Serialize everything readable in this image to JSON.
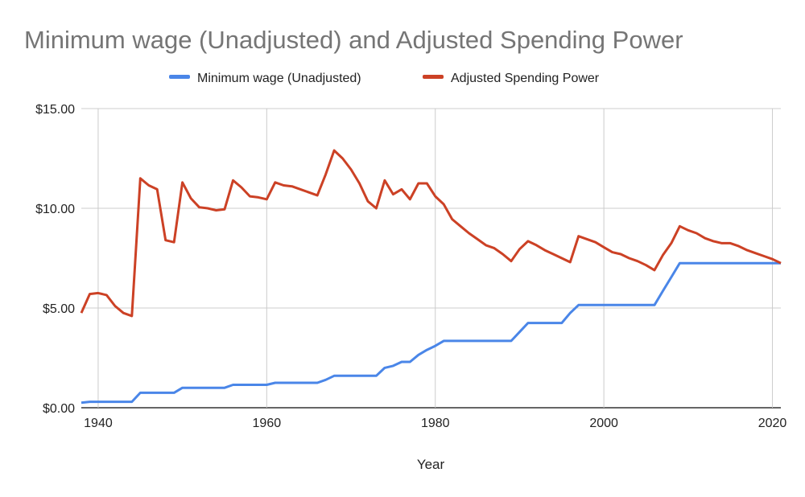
{
  "chart_data": {
    "type": "line",
    "title": "Minimum wage (Unadjusted) and Adjusted Spending Power",
    "xlabel": "Year",
    "ylabel": "",
    "xlim": [
      1938,
      2021
    ],
    "ylim": [
      0,
      15
    ],
    "x_ticks": [
      1940,
      1960,
      1980,
      2000,
      2020
    ],
    "y_ticks": [
      0,
      5,
      10,
      15
    ],
    "y_tick_labels": [
      "$0.00",
      "$5.00",
      "$10.00",
      "$15.00"
    ],
    "grid": true,
    "legend_position": "top",
    "x": [
      1938,
      1939,
      1940,
      1941,
      1942,
      1943,
      1944,
      1945,
      1946,
      1947,
      1948,
      1949,
      1950,
      1951,
      1952,
      1953,
      1954,
      1955,
      1956,
      1957,
      1958,
      1959,
      1960,
      1961,
      1962,
      1963,
      1964,
      1965,
      1966,
      1967,
      1968,
      1969,
      1970,
      1971,
      1972,
      1973,
      1974,
      1975,
      1976,
      1977,
      1978,
      1979,
      1980,
      1981,
      1982,
      1983,
      1984,
      1985,
      1986,
      1987,
      1988,
      1989,
      1990,
      1991,
      1992,
      1993,
      1994,
      1995,
      1996,
      1997,
      1998,
      1999,
      2000,
      2001,
      2002,
      2003,
      2004,
      2005,
      2006,
      2007,
      2008,
      2009,
      2010,
      2011,
      2012,
      2013,
      2014,
      2015,
      2016,
      2017,
      2018,
      2019,
      2020,
      2021
    ],
    "series": [
      {
        "name": "Minimum wage (Unadjusted)",
        "color": "#4a86e8",
        "values": [
          0.25,
          0.3,
          0.3,
          0.3,
          0.3,
          0.3,
          0.3,
          0.75,
          0.75,
          0.75,
          0.75,
          0.75,
          1.0,
          1.0,
          1.0,
          1.0,
          1.0,
          1.0,
          1.15,
          1.15,
          1.15,
          1.15,
          1.15,
          1.25,
          1.25,
          1.25,
          1.25,
          1.25,
          1.25,
          1.4,
          1.6,
          1.6,
          1.6,
          1.6,
          1.6,
          1.6,
          2.0,
          2.1,
          2.3,
          2.3,
          2.65,
          2.9,
          3.1,
          3.35,
          3.35,
          3.35,
          3.35,
          3.35,
          3.35,
          3.35,
          3.35,
          3.35,
          3.8,
          4.25,
          4.25,
          4.25,
          4.25,
          4.25,
          4.75,
          5.15,
          5.15,
          5.15,
          5.15,
          5.15,
          5.15,
          5.15,
          5.15,
          5.15,
          5.15,
          5.85,
          6.55,
          7.25,
          7.25,
          7.25,
          7.25,
          7.25,
          7.25,
          7.25,
          7.25,
          7.25,
          7.25,
          7.25,
          7.25,
          7.25
        ]
      },
      {
        "name": "Adjusted Spending Power",
        "color": "#cc4125",
        "values": [
          4.75,
          5.7,
          5.75,
          5.65,
          5.1,
          4.75,
          4.6,
          11.5,
          11.15,
          10.95,
          8.4,
          8.3,
          11.3,
          10.5,
          10.05,
          10.0,
          9.9,
          9.95,
          11.4,
          11.05,
          10.6,
          10.55,
          10.45,
          11.3,
          11.15,
          11.1,
          10.95,
          10.8,
          10.65,
          11.7,
          12.9,
          12.5,
          11.95,
          11.25,
          10.35,
          10.0,
          11.4,
          10.7,
          10.95,
          10.45,
          11.25,
          11.25,
          10.6,
          10.2,
          9.45,
          9.1,
          8.75,
          8.45,
          8.15,
          8.0,
          7.7,
          7.35,
          7.95,
          8.35,
          8.15,
          7.9,
          7.7,
          7.5,
          7.3,
          8.6,
          8.45,
          8.3,
          8.05,
          7.8,
          7.7,
          7.5,
          7.35,
          7.15,
          6.9,
          7.65,
          8.25,
          9.1,
          8.9,
          8.75,
          8.5,
          8.35,
          8.25,
          8.25,
          8.1,
          7.9,
          7.75,
          7.6,
          7.45,
          7.25
        ]
      }
    ]
  }
}
